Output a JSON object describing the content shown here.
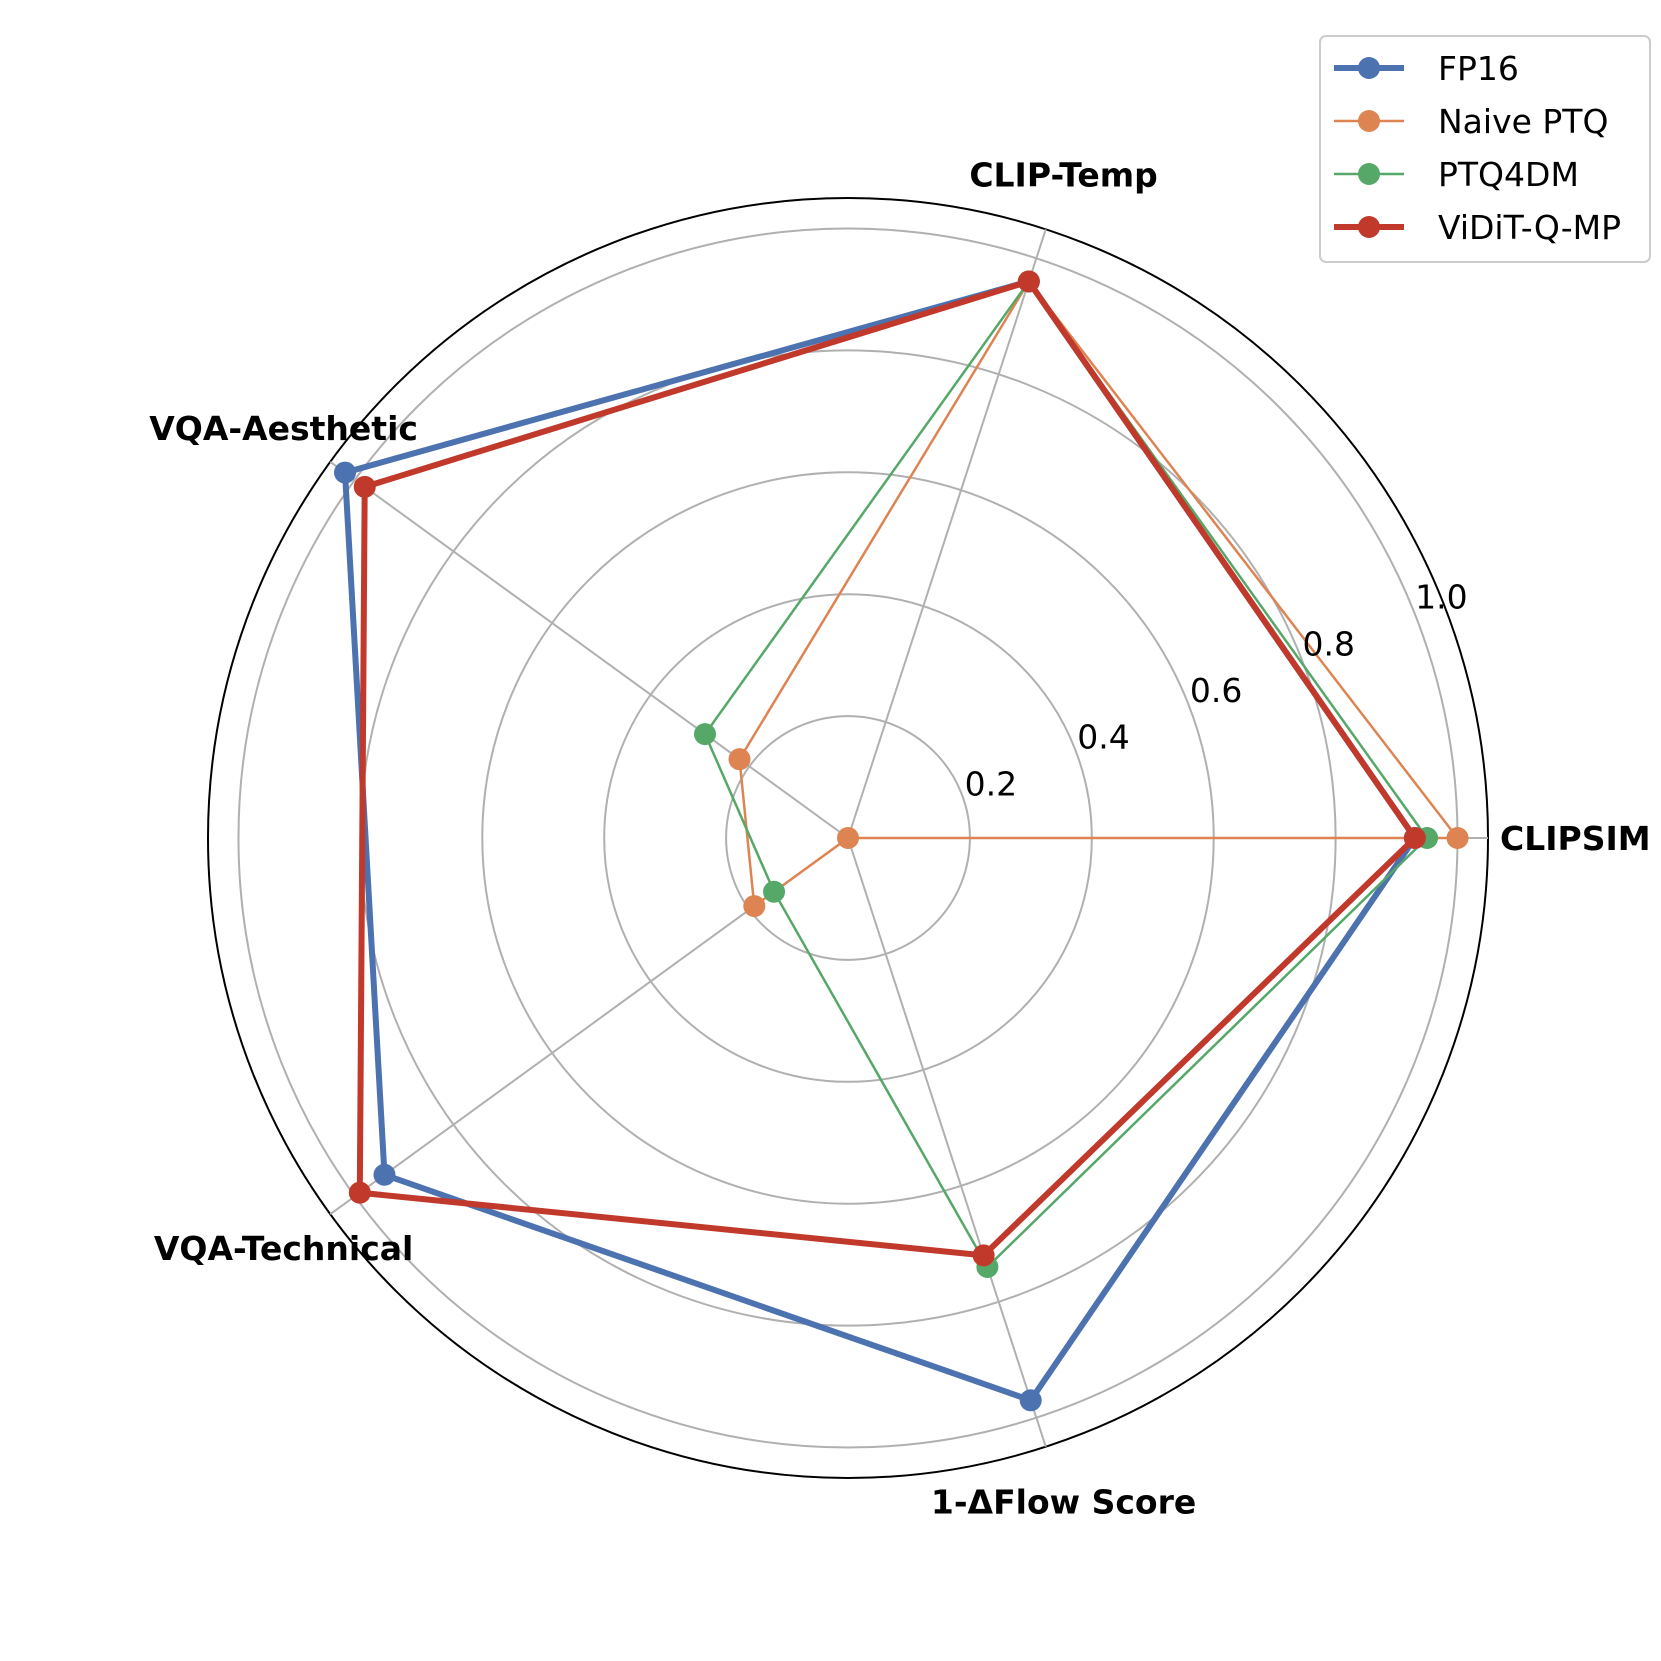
{
  "chart_data": {
    "type": "radar",
    "axes": [
      "CLIPSIM",
      "CLIP-Temp",
      "VQA-Aesthetic",
      "VQA-Technical",
      "1-ΔFlow Score"
    ],
    "r_ticks": [
      "0.2",
      "0.4",
      "0.6",
      "0.8",
      "1.0"
    ],
    "r_tick_values": [
      0.2,
      0.4,
      0.6,
      0.8,
      1.0
    ],
    "r_max": 1.05,
    "grid": true,
    "legend_position": "top-right",
    "series": [
      {
        "name": "FP16",
        "color": "#4c72b0",
        "width": "thick",
        "values": [
          0.93,
          0.96,
          1.02,
          0.94,
          0.97
        ]
      },
      {
        "name": "Naive PTQ",
        "color": "#dd8452",
        "width": "thin",
        "values": [
          1.0,
          0.96,
          0.22,
          0.19,
          0.0
        ]
      },
      {
        "name": "PTQ4DM",
        "color": "#55a868",
        "width": "thin",
        "values": [
          0.95,
          0.96,
          0.29,
          0.15,
          0.74
        ]
      },
      {
        "name": "ViDiT-Q-MP",
        "color": "#c0392b",
        "width": "thick",
        "values": [
          0.93,
          0.96,
          0.98,
          0.99,
          0.72
        ]
      }
    ]
  }
}
